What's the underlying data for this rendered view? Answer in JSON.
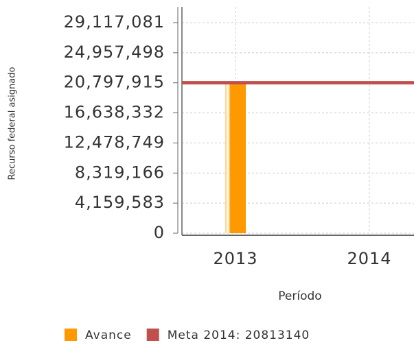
{
  "chart_data": {
    "type": "bar",
    "categories": [
      "2013",
      "2014"
    ],
    "series": [
      {
        "name": "Avance",
        "type": "bar",
        "color": "#ff9900",
        "values": [
          20800000,
          null
        ]
      },
      {
        "name": "Meta 2014: 20813140",
        "type": "line",
        "color": "#c0504d",
        "values": [
          20813140,
          20813140
        ]
      }
    ],
    "xlabel": "Período",
    "ylabel": "Recurso federal asignado",
    "ylim": [
      0,
      31300000
    ],
    "yticks": [
      0,
      {
        "value": 4159583,
        "label": "4,159,583"
      },
      {
        "value": 8319166,
        "label": "8,319,166"
      },
      {
        "value": 12478749,
        "label": "12,478,749"
      },
      {
        "value": 16638332,
        "label": "16,638,332"
      },
      {
        "value": 20797915,
        "label": "20,797,915"
      },
      {
        "value": 24957498,
        "label": "24,957,498"
      },
      {
        "value": 29117081,
        "label": "29,117,081"
      }
    ],
    "grid": true,
    "legend": "bottom"
  }
}
